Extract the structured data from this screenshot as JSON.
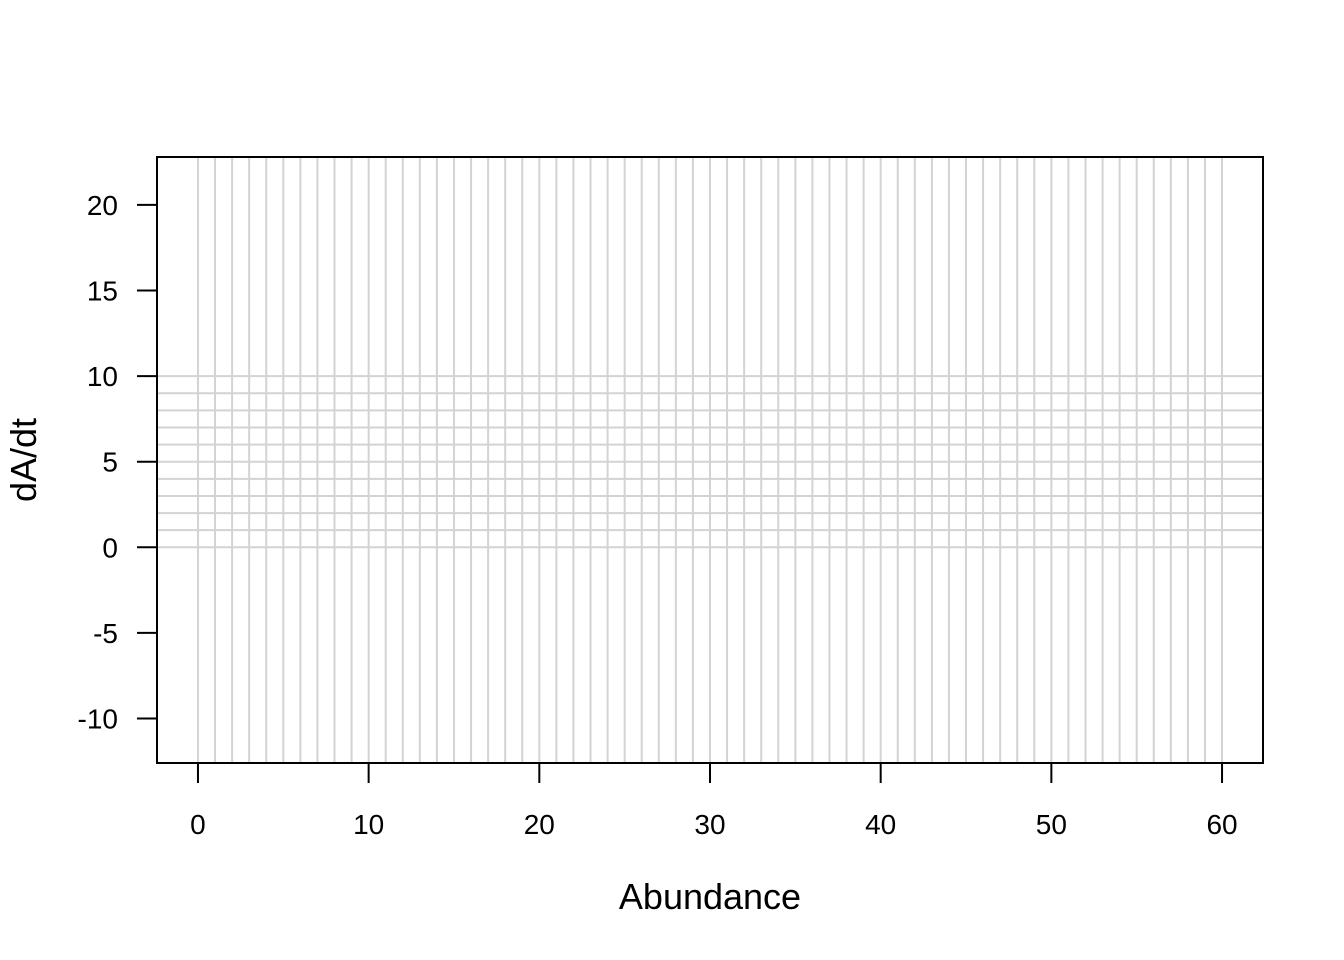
{
  "chart_data": {
    "type": "line",
    "title": "",
    "xlabel": "Abundance",
    "ylabel": "dA/dt",
    "xlim": [
      -2.4,
      62.4
    ],
    "ylim": [
      -12.6,
      22.8
    ],
    "x_ticks": [
      0,
      10,
      20,
      30,
      40,
      50,
      60
    ],
    "y_ticks": [
      -10,
      -5,
      0,
      5,
      10,
      15,
      20
    ],
    "x_tick_labels": [
      "0",
      "10",
      "20",
      "30",
      "40",
      "50",
      "60"
    ],
    "y_tick_labels": [
      "-10",
      "-5",
      "0",
      "5",
      "10",
      "15",
      "20"
    ],
    "grid": true,
    "grid_color": "#d3d3d3",
    "grid_vertical_x": {
      "from": 0,
      "to": 60,
      "step": 1
    },
    "grid_horizontal_y": {
      "from": 0,
      "to": 10,
      "step": 1
    },
    "series": []
  }
}
